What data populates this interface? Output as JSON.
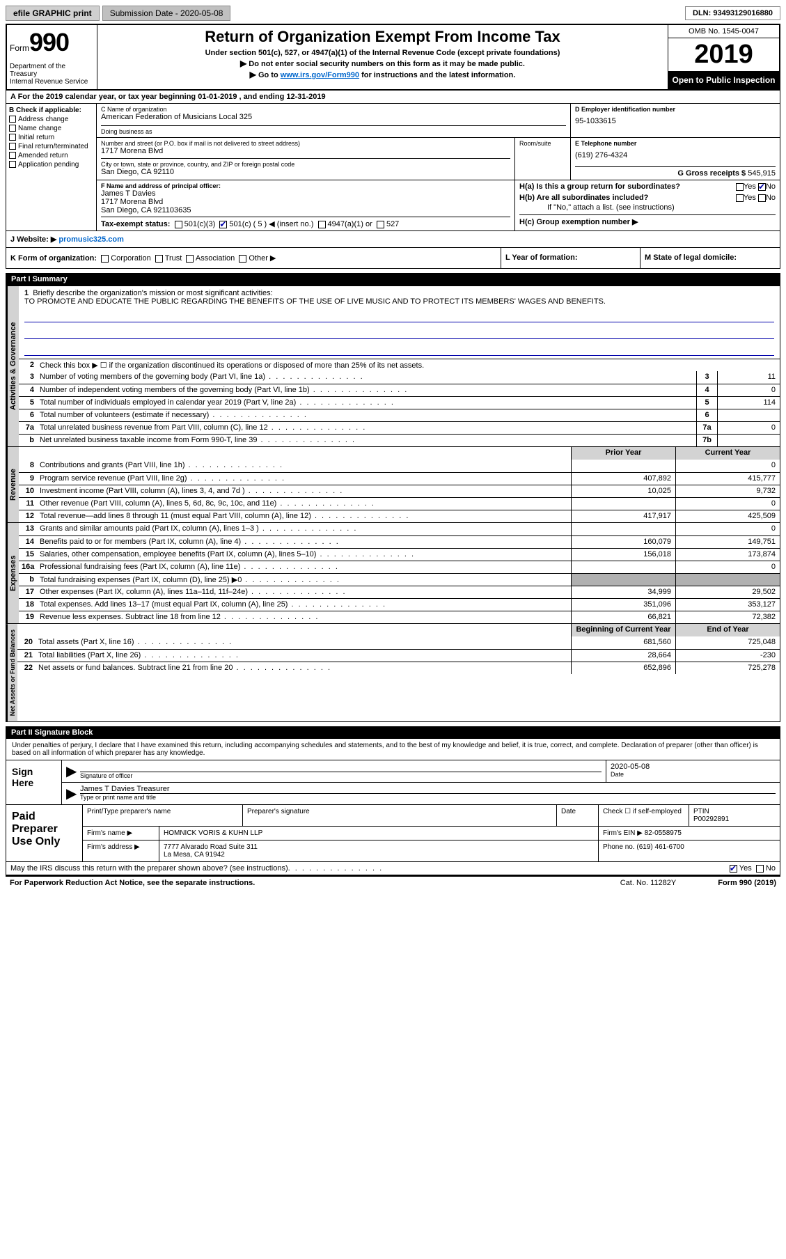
{
  "topbar": {
    "efile": "efile GRAPHIC print",
    "submission": "Submission Date - 2020-05-08",
    "dln": "DLN: 93493129016880"
  },
  "header": {
    "form_prefix": "Form",
    "form_number": "990",
    "dept": "Department of the Treasury\nInternal Revenue Service",
    "title": "Return of Organization Exempt From Income Tax",
    "sub1": "Under section 501(c), 527, or 4947(a)(1) of the Internal Revenue Code (except private foundations)",
    "sub2": "Do not enter social security numbers on this form as it may be made public.",
    "sub3_prefix": "Go to ",
    "sub3_link": "www.irs.gov/Form990",
    "sub3_suffix": " for instructions and the latest information.",
    "omb": "OMB No. 1545-0047",
    "year": "2019",
    "open": "Open to Public Inspection"
  },
  "row_a": "A For the 2019 calendar year, or tax year beginning 01-01-2019   , and ending 12-31-2019",
  "section_b": {
    "header": "B Check if applicable:",
    "options": [
      "Address change",
      "Name change",
      "Initial return",
      "Final return/terminated",
      "Amended return",
      "Application pending"
    ]
  },
  "section_c": {
    "name_lbl": "C Name of organization",
    "name": "American Federation of Musicians Local 325",
    "dba_lbl": "Doing business as",
    "addr_lbl": "Number and street (or P.O. box if mail is not delivered to street address)",
    "addr": "1717 Morena Blvd",
    "room_lbl": "Room/suite",
    "city_lbl": "City or town, state or province, country, and ZIP or foreign postal code",
    "city": "San Diego, CA  92110"
  },
  "section_d": {
    "lbl": "D Employer identification number",
    "val": "95-1033615"
  },
  "section_e": {
    "lbl": "E Telephone number",
    "val": "(619) 276-4324"
  },
  "section_g": {
    "lbl": "G Gross receipts $",
    "val": "545,915"
  },
  "section_f": {
    "lbl": "F  Name and address of principal officer:",
    "name": "James T Davies",
    "addr1": "1717 Morena Blvd",
    "addr2": "San Diego, CA  921103635"
  },
  "section_h": {
    "a": "H(a)  Is this a group return for subordinates?",
    "b": "H(b)  Are all subordinates included?",
    "note": "If \"No,\" attach a list. (see instructions)",
    "c": "H(c)  Group exemption number ▶"
  },
  "section_i": {
    "lbl": "Tax-exempt status:",
    "opts": [
      "501(c)(3)",
      "501(c) ( 5 ) ◀ (insert no.)",
      "4947(a)(1) or",
      "527"
    ]
  },
  "section_j": {
    "lbl": "J   Website: ▶",
    "val": "promusic325.com"
  },
  "section_k": {
    "k": "K Form of organization:",
    "opts": [
      "Corporation",
      "Trust",
      "Association",
      "Other ▶"
    ],
    "l": "L Year of formation:",
    "m": "M State of legal domicile:"
  },
  "part1": {
    "header": "Part I     Summary",
    "q1": "Briefly describe the organization's mission or most significant activities:",
    "mission": "TO PROMOTE AND EDUCATE THE PUBLIC REGARDING THE BENEFITS OF THE USE OF LIVE MUSIC AND TO PROTECT ITS MEMBERS' WAGES AND BENEFITS.",
    "q2": "Check this box ▶ ☐  if the organization discontinued its operations or disposed of more than 25% of its net assets.",
    "rows_gov": [
      {
        "n": "3",
        "d": "Number of voting members of the governing body (Part VI, line 1a)",
        "box": "3",
        "v": "11"
      },
      {
        "n": "4",
        "d": "Number of independent voting members of the governing body (Part VI, line 1b)",
        "box": "4",
        "v": "0"
      },
      {
        "n": "5",
        "d": "Total number of individuals employed in calendar year 2019 (Part V, line 2a)",
        "box": "5",
        "v": "114"
      },
      {
        "n": "6",
        "d": "Total number of volunteers (estimate if necessary)",
        "box": "6",
        "v": ""
      },
      {
        "n": "7a",
        "d": "Total unrelated business revenue from Part VIII, column (C), line 12",
        "box": "7a",
        "v": "0"
      },
      {
        "n": "b",
        "d": "Net unrelated business taxable income from Form 990-T, line 39",
        "box": "7b",
        "v": ""
      }
    ],
    "col_hdrs": {
      "prior": "Prior Year",
      "curr": "Current Year"
    },
    "rows_rev": [
      {
        "n": "8",
        "d": "Contributions and grants (Part VIII, line 1h)",
        "p": "",
        "c": "0"
      },
      {
        "n": "9",
        "d": "Program service revenue (Part VIII, line 2g)",
        "p": "407,892",
        "c": "415,777"
      },
      {
        "n": "10",
        "d": "Investment income (Part VIII, column (A), lines 3, 4, and 7d )",
        "p": "10,025",
        "c": "9,732"
      },
      {
        "n": "11",
        "d": "Other revenue (Part VIII, column (A), lines 5, 6d, 8c, 9c, 10c, and 11e)",
        "p": "",
        "c": "0"
      },
      {
        "n": "12",
        "d": "Total revenue—add lines 8 through 11 (must equal Part VIII, column (A), line 12)",
        "p": "417,917",
        "c": "425,509"
      }
    ],
    "rows_exp": [
      {
        "n": "13",
        "d": "Grants and similar amounts paid (Part IX, column (A), lines 1–3 )",
        "p": "",
        "c": "0"
      },
      {
        "n": "14",
        "d": "Benefits paid to or for members (Part IX, column (A), line 4)",
        "p": "160,079",
        "c": "149,751"
      },
      {
        "n": "15",
        "d": "Salaries, other compensation, employee benefits (Part IX, column (A), lines 5–10)",
        "p": "156,018",
        "c": "173,874"
      },
      {
        "n": "16a",
        "d": "Professional fundraising fees (Part IX, column (A), line 11e)",
        "p": "",
        "c": "0"
      },
      {
        "n": "b",
        "d": "Total fundraising expenses (Part IX, column (D), line 25) ▶0",
        "p": "shade",
        "c": "shade"
      },
      {
        "n": "17",
        "d": "Other expenses (Part IX, column (A), lines 11a–11d, 11f–24e)",
        "p": "34,999",
        "c": "29,502"
      },
      {
        "n": "18",
        "d": "Total expenses. Add lines 13–17 (must equal Part IX, column (A), line 25)",
        "p": "351,096",
        "c": "353,127"
      },
      {
        "n": "19",
        "d": "Revenue less expenses. Subtract line 18 from line 12",
        "p": "66,821",
        "c": "72,382"
      }
    ],
    "col_hdrs2": {
      "prior": "Beginning of Current Year",
      "curr": "End of Year"
    },
    "rows_net": [
      {
        "n": "20",
        "d": "Total assets (Part X, line 16)",
        "p": "681,560",
        "c": "725,048"
      },
      {
        "n": "21",
        "d": "Total liabilities (Part X, line 26)",
        "p": "28,664",
        "c": "-230"
      },
      {
        "n": "22",
        "d": "Net assets or fund balances. Subtract line 21 from line 20",
        "p": "652,896",
        "c": "725,278"
      }
    ],
    "vtabs": {
      "gov": "Activities & Governance",
      "rev": "Revenue",
      "exp": "Expenses",
      "net": "Net Assets or Fund Balances"
    }
  },
  "part2": {
    "header": "Part II     Signature Block",
    "penalty": "Under penalties of perjury, I declare that I have examined this return, including accompanying schedules and statements, and to the best of my knowledge and belief, it is true, correct, and complete. Declaration of preparer (other than officer) is based on all information of which preparer has any knowledge.",
    "sign_here": "Sign Here",
    "sig_officer_lbl": "Signature of officer",
    "sig_date": "2020-05-08",
    "sig_date_lbl": "Date",
    "officer_name": "James T Davies  Treasurer",
    "officer_name_lbl": "Type or print name and title",
    "paid_prep": "Paid Preparer Use Only",
    "prep_name_lbl": "Print/Type preparer's name",
    "prep_sig_lbl": "Preparer's signature",
    "date_lbl": "Date",
    "self_emp": "Check ☐ if self-employed",
    "ptin_lbl": "PTIN",
    "ptin": "P00292891",
    "firm_name_lbl": "Firm's name    ▶",
    "firm_name": "HOMNICK VORIS & KUHN LLP",
    "firm_ein_lbl": "Firm's EIN ▶",
    "firm_ein": "82-0558975",
    "firm_addr_lbl": "Firm's address ▶",
    "firm_addr1": "7777 Alvarado Road Suite 311",
    "firm_addr2": "La Mesa, CA  91942",
    "phone_lbl": "Phone no.",
    "phone": "(619) 461-6700",
    "discuss": "May the IRS discuss this return with the preparer shown above? (see instructions)",
    "paperwork": "For Paperwork Reduction Act Notice, see the separate instructions.",
    "cat": "Cat. No. 11282Y",
    "form_foot": "Form 990 (2019)"
  }
}
